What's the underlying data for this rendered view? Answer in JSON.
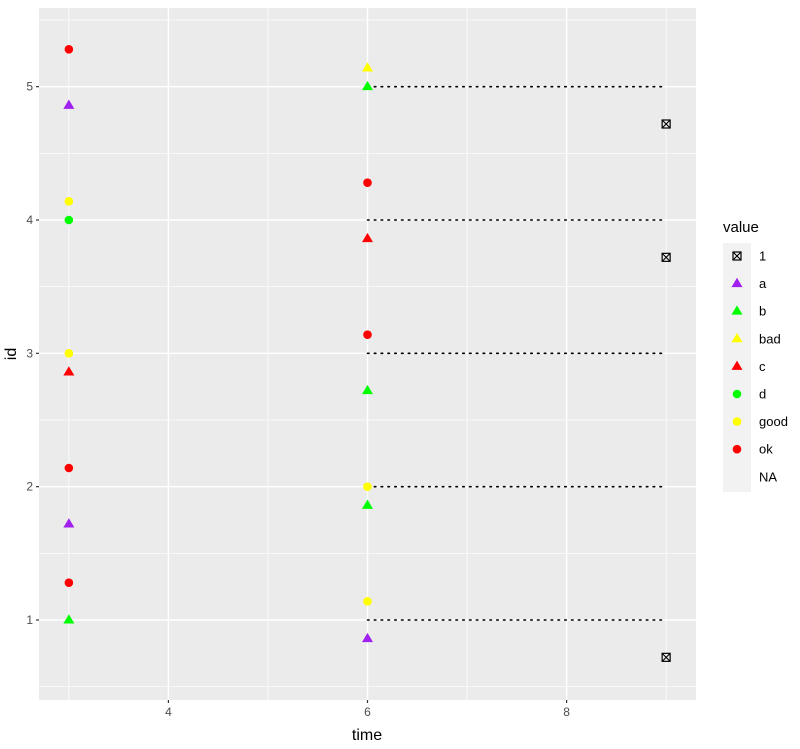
{
  "chart_data": {
    "type": "scatter",
    "title": "",
    "xlabel": "time",
    "ylabel": "id",
    "xlim": [
      2.7,
      9.3
    ],
    "ylim": [
      0.4,
      5.59
    ],
    "x_ticks": [
      4,
      6,
      8
    ],
    "y_ticks": [
      1,
      2,
      3,
      4,
      5
    ],
    "grid": true,
    "legend": {
      "title": "value",
      "position": "right",
      "entries": [
        {
          "label": "1",
          "shape": "crossed-square",
          "color": "#000000"
        },
        {
          "label": "a",
          "shape": "triangle",
          "color": "#A020F0"
        },
        {
          "label": "b",
          "shape": "triangle",
          "color": "#00FF00"
        },
        {
          "label": "bad",
          "shape": "triangle",
          "color": "#FFFF00"
        },
        {
          "label": "c",
          "shape": "triangle",
          "color": "#FF0000"
        },
        {
          "label": "d",
          "shape": "circle",
          "color": "#00FF00"
        },
        {
          "label": "good",
          "shape": "circle",
          "color": "#FFFF00"
        },
        {
          "label": "ok",
          "shape": "circle",
          "color": "#FF0000"
        },
        {
          "label": "NA",
          "shape": "none",
          "color": ""
        }
      ]
    },
    "points": [
      {
        "x": 3,
        "y": 5.28,
        "value": "ok"
      },
      {
        "x": 3,
        "y": 4.86,
        "value": "a"
      },
      {
        "x": 3,
        "y": 4.14,
        "value": "good"
      },
      {
        "x": 3,
        "y": 4.0,
        "value": "d"
      },
      {
        "x": 3,
        "y": 3.0,
        "value": "good"
      },
      {
        "x": 3,
        "y": 2.86,
        "value": "c"
      },
      {
        "x": 3,
        "y": 2.14,
        "value": "ok"
      },
      {
        "x": 3,
        "y": 1.72,
        "value": "a"
      },
      {
        "x": 3,
        "y": 1.28,
        "value": "ok"
      },
      {
        "x": 3,
        "y": 1.0,
        "value": "b"
      },
      {
        "x": 6,
        "y": 5.14,
        "value": "bad"
      },
      {
        "x": 6,
        "y": 5.0,
        "value": "b"
      },
      {
        "x": 6,
        "y": 4.28,
        "value": "ok"
      },
      {
        "x": 6,
        "y": 3.86,
        "value": "c"
      },
      {
        "x": 6,
        "y": 3.14,
        "value": "ok"
      },
      {
        "x": 6,
        "y": 2.72,
        "value": "b"
      },
      {
        "x": 6,
        "y": 2.0,
        "value": "good"
      },
      {
        "x": 6,
        "y": 1.86,
        "value": "b"
      },
      {
        "x": 6,
        "y": 1.14,
        "value": "good"
      },
      {
        "x": 6,
        "y": 0.86,
        "value": "a"
      },
      {
        "x": 9,
        "y": 4.72,
        "value": "1"
      },
      {
        "x": 9,
        "y": 3.72,
        "value": "1"
      },
      {
        "x": 9,
        "y": 0.72,
        "value": "1"
      }
    ],
    "segments": [
      {
        "x0": 6,
        "x1": 9,
        "y": 5,
        "linetype": "dotted"
      },
      {
        "x0": 6,
        "x1": 9,
        "y": 4,
        "linetype": "dotted"
      },
      {
        "x0": 6,
        "x1": 9,
        "y": 3,
        "linetype": "dotted"
      },
      {
        "x0": 6,
        "x1": 9,
        "y": 2,
        "linetype": "dotted"
      },
      {
        "x0": 6,
        "x1": 9,
        "y": 1,
        "linetype": "dotted"
      }
    ]
  },
  "axes": {
    "xlabel": "time",
    "ylabel": "id",
    "x_tick_labels": [
      "4",
      "6",
      "8"
    ],
    "y_tick_labels": [
      "1",
      "2",
      "3",
      "4",
      "5"
    ]
  },
  "legend": {
    "title": "value",
    "labels": [
      "1",
      "a",
      "b",
      "bad",
      "c",
      "d",
      "good",
      "ok",
      "NA"
    ]
  }
}
